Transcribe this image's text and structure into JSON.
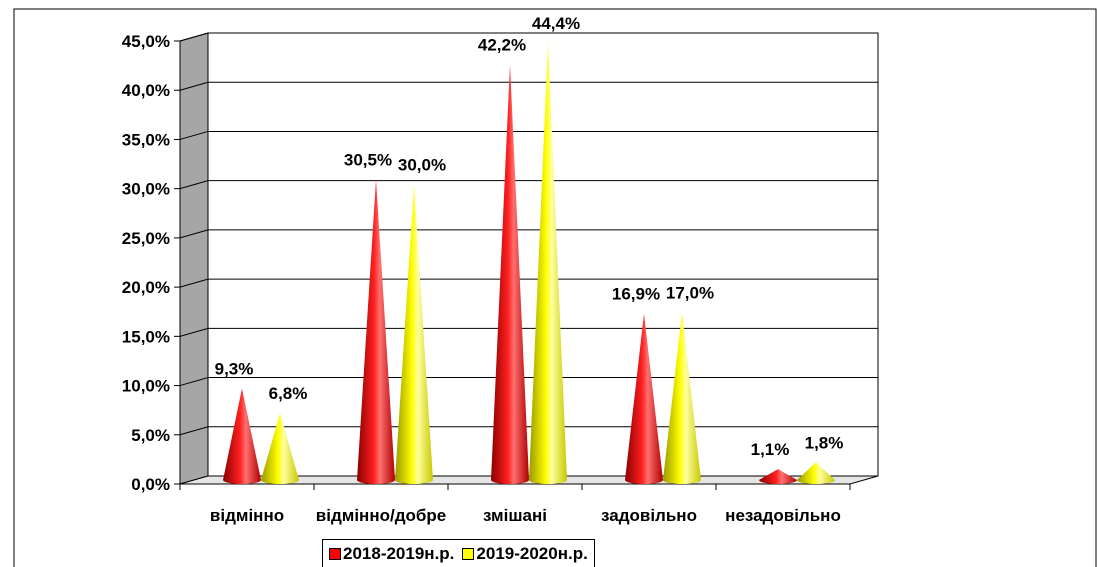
{
  "chart_data": {
    "type": "bar",
    "subtype": "3d-cone",
    "categories": [
      "відмінно",
      "відмінно/добре",
      "змішані",
      "задовільно",
      "незадовільно"
    ],
    "series": [
      {
        "name": "2018-2019н.р.",
        "color": "#ff0000",
        "values": [
          9.3,
          30.5,
          42.2,
          16.9,
          1.1
        ],
        "labels": [
          "9,3%",
          "30,5%",
          "42,2%",
          "16,9%",
          "1,1%"
        ]
      },
      {
        "name": "2019-2020н.р.",
        "color": "#ffff00",
        "values": [
          6.8,
          30.0,
          44.4,
          17.0,
          1.8
        ],
        "labels": [
          "6,8%",
          "30,0%",
          "44,4%",
          "17,0%",
          "1,8%"
        ]
      }
    ],
    "y_ticks": [
      "0,0%",
      "5,0%",
      "10,0%",
      "15,0%",
      "20,0%",
      "25,0%",
      "30,0%",
      "35,0%",
      "40,0%",
      "45,0%"
    ],
    "ylim": [
      0,
      45
    ],
    "grid": true,
    "legend_position": "bottom",
    "wall_color": "#a6a6a6"
  }
}
